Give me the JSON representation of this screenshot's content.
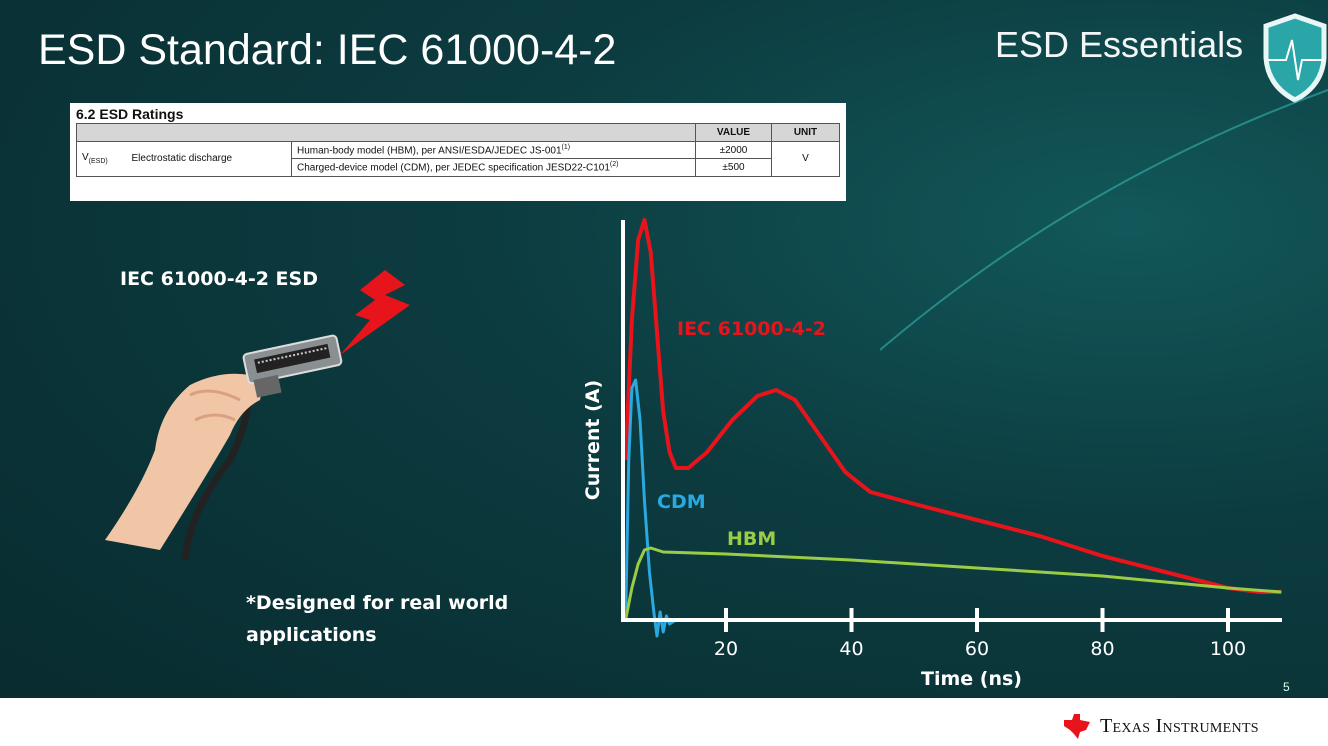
{
  "slide": {
    "title": "ESD Standard: IEC 61000-4-2",
    "brand": "ESD Essentials",
    "slide_number": "5",
    "company": "Texas Instruments"
  },
  "table": {
    "caption": "6.2   ESD Ratings",
    "headers": {
      "value": "VALUE",
      "unit": "UNIT"
    },
    "symbol": "V",
    "symbol_sub": "(ESD)",
    "parameter": "Electrostatic discharge",
    "rows": [
      {
        "desc": "Human-body model (HBM), per ANSI/ESDA/JEDEC JS-001",
        "note": "(1)",
        "value": "±2000"
      },
      {
        "desc": "Charged-device model (CDM), per JEDEC specification JESD22-C101",
        "note": "(2)",
        "value": "±500"
      }
    ],
    "unit": "V"
  },
  "left": {
    "heading": "IEC 61000-4-2 ESD",
    "note_line1": "*Designed for real world",
    "note_line2": "applications"
  },
  "chart_data": {
    "type": "line",
    "xlabel": "Time (ns)",
    "ylabel": "Current (A)",
    "xticks": [
      20,
      40,
      60,
      80,
      100
    ],
    "xlim": [
      3.6,
      108.6
    ],
    "ylim": [
      0,
      100
    ],
    "y_ticks_shown": false,
    "grid": false,
    "series": [
      {
        "name": "IEC 61000-4-2",
        "color": "#e8141b",
        "points": [
          [
            4,
            40
          ],
          [
            5,
            75
          ],
          [
            6,
            95
          ],
          [
            7,
            100
          ],
          [
            8,
            92
          ],
          [
            9,
            72
          ],
          [
            10,
            52
          ],
          [
            11,
            42
          ],
          [
            12,
            38
          ],
          [
            14,
            38
          ],
          [
            17,
            42
          ],
          [
            21,
            50
          ],
          [
            25,
            56
          ],
          [
            28,
            57.5
          ],
          [
            31,
            55
          ],
          [
            35,
            46
          ],
          [
            39,
            37
          ],
          [
            43,
            32
          ],
          [
            50,
            29
          ],
          [
            60,
            25
          ],
          [
            70,
            21
          ],
          [
            80,
            16
          ],
          [
            90,
            12
          ],
          [
            100,
            8
          ],
          [
            105,
            7
          ],
          [
            108.5,
            7
          ]
        ]
      },
      {
        "name": "CDM",
        "color": "#29a9e0",
        "points": [
          [
            4,
            0
          ],
          [
            4.5,
            40
          ],
          [
            5,
            58
          ],
          [
            5.6,
            60
          ],
          [
            6.3,
            50
          ],
          [
            7,
            30
          ],
          [
            7.8,
            12
          ],
          [
            8.5,
            2
          ],
          [
            9,
            -4
          ],
          [
            9.5,
            2
          ],
          [
            10,
            -3
          ],
          [
            10.5,
            1
          ],
          [
            11,
            -1
          ],
          [
            12,
            0
          ],
          [
            13,
            0
          ]
        ]
      },
      {
        "name": "HBM",
        "color": "#9acd45",
        "points": [
          [
            4,
            0
          ],
          [
            5,
            8
          ],
          [
            6,
            14
          ],
          [
            7,
            17.5
          ],
          [
            8,
            18
          ],
          [
            9,
            17.5
          ],
          [
            10,
            17
          ],
          [
            20,
            16.5
          ],
          [
            40,
            15
          ],
          [
            60,
            13
          ],
          [
            80,
            11
          ],
          [
            100,
            8
          ],
          [
            108.5,
            7
          ]
        ]
      }
    ]
  }
}
